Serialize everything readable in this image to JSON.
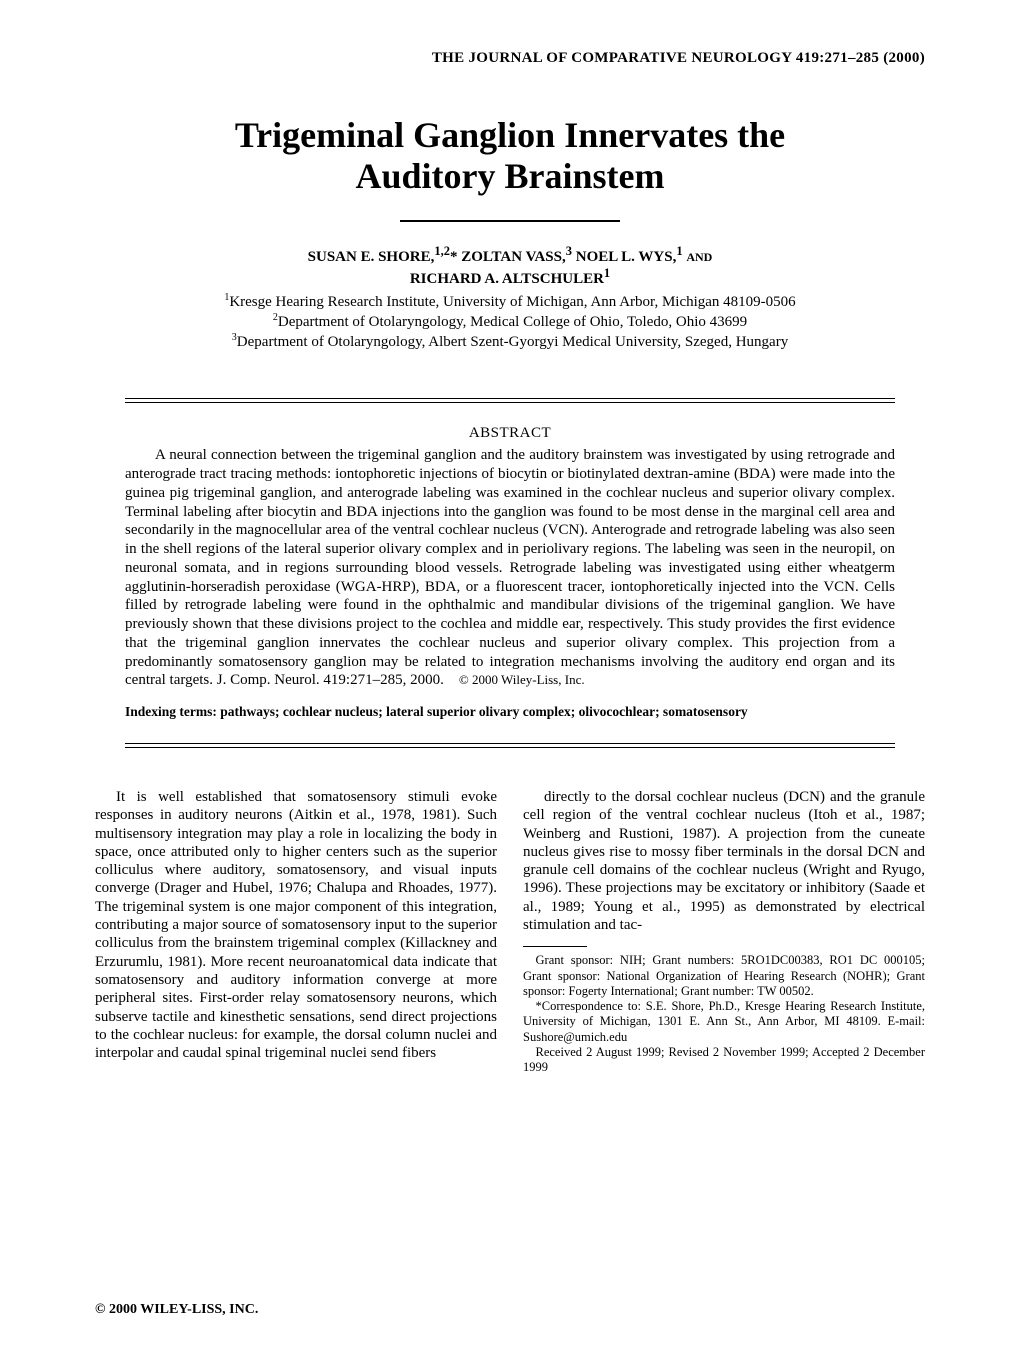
{
  "running_head": "THE JOURNAL OF COMPARATIVE NEUROLOGY 419:271–285 (2000)",
  "title_line1": "Trigeminal Ganglion Innervates the",
  "title_line2": "Auditory Brainstem",
  "authors_html": "SUSAN E. SHORE,<sup>1,2</sup>* ZOLTAN VASS,<sup>3</sup> NOEL L. WYS,<sup>1</sup> ",
  "authors_and": "AND",
  "authors_line2": "RICHARD A. ALTSCHULER<sup>1</sup>",
  "affil1": "<sup>1</sup>Kresge Hearing Research Institute, University of Michigan, Ann Arbor, Michigan 48109-0506",
  "affil2": "<sup>2</sup>Department of Otolaryngology, Medical College of Ohio, Toledo, Ohio 43699",
  "affil3": "<sup>3</sup>Department of Otolaryngology, Albert Szent-Gyorgyi Medical University, Szeged, Hungary",
  "abstract_heading": "ABSTRACT",
  "abstract_body": "A neural connection between the trigeminal ganglion and the auditory brainstem was investigated by using retrograde and anterograde tract tracing methods: iontophoretic injections of biocytin or biotinylated dextran-amine (BDA) were made into the guinea pig trigeminal ganglion, and anterograde labeling was examined in the cochlear nucleus and superior olivary complex. Terminal labeling after biocytin and BDA injections into the ganglion was found to be most dense in the marginal cell area and secondarily in the magnocellular area of the ventral cochlear nucleus (VCN). Anterograde and retrograde labeling was also seen in the shell regions of the lateral superior olivary complex and in periolivary regions. The labeling was seen in the neuropil, on neuronal somata, and in regions surrounding blood vessels. Retrograde labeling was investigated using either wheatgerm agglutinin-horseradish peroxidase (WGA-HRP), BDA, or a fluorescent tracer, iontophoretically injected into the VCN. Cells filled by retrograde labeling were found in the ophthalmic and mandibular divisions of the trigeminal ganglion. We have previously shown that these divisions project to the cochlea and middle ear, respectively. This study provides the first evidence that the trigeminal ganglion innervates the cochlear nucleus and superior olivary complex. This projection from a predominantly somatosensory ganglion may be related to integration mechanisms involving the auditory end organ and its central targets. J. Comp. Neurol. 419:271–285, 2000.",
  "copyright_inline": "© 2000 Wiley-Liss, Inc.",
  "indexing_label": "Indexing terms:",
  "indexing_terms": "pathways; cochlear nucleus; lateral superior olivary complex; olivocochlear; somatosensory",
  "col_left": "It is well established that somatosensory stimuli evoke responses in auditory neurons (Aitkin et al., 1978, 1981). Such multisensory integration may play a role in localizing the body in space, once attributed only to higher centers such as the superior colliculus where auditory, somatosensory, and visual inputs converge (Drager and Hubel, 1976; Chalupa and Rhoades, 1977). The trigeminal system is one major component of this integration, contributing a major source of somatosensory input to the superior colliculus from the brainstem trigeminal complex (Killackney and Erzurumlu, 1981). More recent neuroanatomical data indicate that somatosensory and auditory information converge at more peripheral sites. First-order relay somatosensory neurons, which subserve tactile and kinesthetic sensations, send direct projections to the cochlear nucleus: for example, the dorsal column nuclei and interpolar and caudal spinal trigeminal nuclei send fibers",
  "col_right": "directly to the dorsal cochlear nucleus (DCN) and the granule cell region of the ventral cochlear nucleus (Itoh et al., 1987; Weinberg and Rustioni, 1987). A projection from the cuneate nucleus gives rise to mossy fiber terminals in the dorsal DCN and granule cell domains of the cochlear nucleus (Wright and Ryugo, 1996). These projections may be excitatory or inhibitory (Saade et al., 1989; Young et al., 1995) as demonstrated by electrical stimulation and tac-",
  "footnote1": "Grant sponsor: NIH; Grant numbers: 5RO1DC00383, RO1 DC 000105; Grant sponsor: National Organization of Hearing Research (NOHR); Grant sponsor: Fogerty International; Grant number: TW 00502.",
  "footnote2": "*Correspondence to: S.E. Shore, Ph.D., Kresge Hearing Research Institute, University of Michigan, 1301 E. Ann St., Ann Arbor, MI 48109. E-mail: Sushore@umich.edu",
  "footnote3": "Received 2 August 1999; Revised 2 November 1999; Accepted 2 December 1999",
  "footer": "© 2000 WILEY-LISS, INC."
}
